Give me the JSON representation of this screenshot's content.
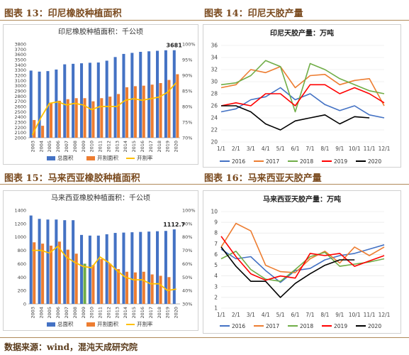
{
  "fig13": {
    "label": "图表 13：印尼橡胶种植面积"
  },
  "fig14": {
    "label": "图表 14：印尼天胶产量"
  },
  "fig15": {
    "label": "图表 15：马来西亚橡胶种植面积"
  },
  "fig16": {
    "label": "图表 16：马来西亚天胶产量"
  },
  "source": "数据来源：wind，混沌天成研究院",
  "colors": {
    "total": "#4472c4",
    "tapped": "#ed7d31",
    "rate": "#ffc000",
    "y2016": "#4472c4",
    "y2017": "#ed7d31",
    "y2018": "#70ad47",
    "y2019": "#ff0000",
    "y2020": "#000000",
    "highlight": "#70ad47",
    "figure_label": "#7a4a1e"
  },
  "chart_data": [
    {
      "id": "c13",
      "type": "bar",
      "title": "印尼橡胶种植面积：千公顷",
      "categories": [
        "2003",
        "2004",
        "2005",
        "2006",
        "2007",
        "2008",
        "2009",
        "2010",
        "2011",
        "2012",
        "2013",
        "2014",
        "2015",
        "2016",
        "2017",
        "2018",
        "2019",
        "2020"
      ],
      "ylim": [
        2000,
        3800
      ],
      "yticks": [
        2000,
        2100,
        2200,
        2300,
        2400,
        2500,
        2600,
        2700,
        2800,
        2900,
        3000,
        3100,
        3200,
        3300,
        3400,
        3500,
        3600,
        3700,
        3800
      ],
      "y2lim": [
        70,
        100
      ],
      "y2ticks": [
        "70%",
        "75%",
        "80%",
        "85%",
        "90%",
        "95%",
        "100%"
      ],
      "y2values": [
        70,
        75,
        80,
        85,
        90,
        95,
        100
      ],
      "series": [
        {
          "name": "总面积",
          "kind": "bar",
          "values": [
            3290,
            3270,
            3280,
            3310,
            3410,
            3420,
            3430,
            3440,
            3445,
            3480,
            3550,
            3610,
            3630,
            3650,
            3660,
            3670,
            3680,
            3681
          ]
        },
        {
          "name": "开割面积",
          "kind": "bar",
          "values": [
            2340,
            2230,
            2660,
            2710,
            2740,
            2760,
            2760,
            2700,
            2760,
            2790,
            2840,
            2970,
            2990,
            3000,
            3020,
            3050,
            3110,
            3220
          ]
        },
        {
          "name": "开割率",
          "kind": "line",
          "axis": "right",
          "values": [
            71,
            76.5,
            81,
            81.5,
            80.5,
            81,
            80.5,
            79,
            80,
            80,
            80,
            82,
            82.5,
            82,
            82.5,
            83,
            84.5,
            87.5
          ]
        }
      ],
      "annotation": "3681"
    },
    {
      "id": "c14",
      "type": "line",
      "title": "印尼天胶产量：万吨",
      "categories": [
        "1/1",
        "2/1",
        "3/1",
        "4/1",
        "5/1",
        "6/1",
        "7/1",
        "8/1",
        "9/1",
        "10/1",
        "11/1",
        "12/1"
      ],
      "ylim": [
        20,
        36
      ],
      "yticks": [
        20,
        22,
        24,
        26,
        28,
        30,
        32,
        34,
        36
      ],
      "series": [
        {
          "name": "2016",
          "values": [
            25,
            25.5,
            27,
            27.5,
            29,
            27,
            28,
            26.2,
            25.2,
            26,
            24.5,
            24
          ]
        },
        {
          "name": "2017",
          "values": [
            29,
            29.5,
            32,
            31.5,
            32.5,
            29,
            31,
            31.2,
            29.5,
            30.2,
            30.5,
            26
          ]
        },
        {
          "name": "2018",
          "values": [
            29.5,
            29.8,
            31,
            33.5,
            32.5,
            25,
            33,
            32,
            30.5,
            29.5,
            28.5,
            28
          ]
        },
        {
          "name": "2019",
          "values": [
            26,
            26.5,
            26,
            28,
            28,
            26,
            29.5,
            29.5,
            28,
            29,
            28,
            26.5
          ]
        },
        {
          "name": "2020",
          "values": [
            26,
            26,
            25,
            23,
            22,
            23.5,
            24,
            24.5,
            23,
            24.2,
            24,
            null
          ]
        }
      ]
    },
    {
      "id": "c15",
      "type": "bar",
      "title": "马来西亚橡胶种植面积：千公顷",
      "categories": [
        "2003",
        "2004",
        "2005",
        "2006",
        "2007",
        "2008",
        "2009",
        "2010",
        "2011",
        "2012",
        "2013",
        "2014",
        "2015",
        "2016",
        "2017",
        "2018",
        "2019",
        "2020"
      ],
      "ylim": [
        0,
        1400
      ],
      "yticks": [
        0,
        200,
        400,
        600,
        800,
        1000,
        1200,
        1400
      ],
      "y2lim": [
        30,
        100
      ],
      "y2ticks": [
        "30%",
        "40%",
        "50%",
        "60%",
        "70%",
        "80%",
        "90%",
        "100%"
      ],
      "y2values": [
        30,
        40,
        50,
        60,
        70,
        80,
        90,
        100
      ],
      "series": [
        {
          "name": "总面积",
          "kind": "bar",
          "values": [
            1320,
            1270,
            1260,
            1260,
            1250,
            1250,
            1030,
            1020,
            1020,
            1040,
            1060,
            1065,
            1070,
            1075,
            1080,
            1085,
            1090,
            1112.7
          ]
        },
        {
          "name": "开割面积",
          "kind": "bar",
          "values": [
            920,
            900,
            870,
            930,
            810,
            750,
            600,
            580,
            670,
            600,
            520,
            480,
            470,
            480,
            440,
            420,
            400,
            null
          ],
          "highlight_index": 6
        },
        {
          "name": "开割率",
          "kind": "line",
          "axis": "right",
          "values": [
            70,
            70,
            68,
            73,
            65,
            61,
            58,
            57,
            65,
            61,
            55,
            50,
            48,
            48,
            45,
            45,
            40,
            41
          ]
        }
      ],
      "annotation": "1112.7"
    },
    {
      "id": "c16",
      "type": "line",
      "title": "马来西亚天胶产量：万吨",
      "categories": [
        "1/1",
        "2/1",
        "3/1",
        "4/1",
        "5/1",
        "6/1",
        "7/1",
        "8/1",
        "9/1",
        "10/1",
        "11/1",
        "12/1"
      ],
      "ylim": [
        1,
        10
      ],
      "yticks": [
        1,
        2,
        3,
        4,
        5,
        6,
        7,
        8,
        9,
        10
      ],
      "series": [
        {
          "name": "2016",
          "values": [
            6.5,
            5.6,
            5.8,
            4.5,
            3.4,
            4.5,
            4.7,
            5.5,
            5.9,
            6.1,
            6.5,
            6.9
          ]
        },
        {
          "name": "2017",
          "values": [
            6.7,
            8.9,
            8.2,
            5.0,
            4.4,
            4.3,
            5.6,
            6.3,
            5.2,
            6.7,
            5.9,
            6.7
          ]
        },
        {
          "name": "2018",
          "values": [
            5.6,
            6.3,
            4.6,
            3.7,
            3.5,
            4.6,
            5.8,
            6.2,
            4.9,
            5.1,
            5.3,
            5.6
          ]
        },
        {
          "name": "2019",
          "values": [
            7.7,
            5.8,
            4.2,
            3.6,
            4.0,
            3.8,
            6.1,
            5.9,
            6.1,
            4.9,
            5.4,
            5.9
          ]
        },
        {
          "name": "2020",
          "values": [
            6.7,
            4.9,
            3.5,
            3.5,
            2.0,
            3.3,
            4.2,
            5.0,
            5.5,
            5.5,
            null,
            null
          ]
        }
      ]
    }
  ]
}
